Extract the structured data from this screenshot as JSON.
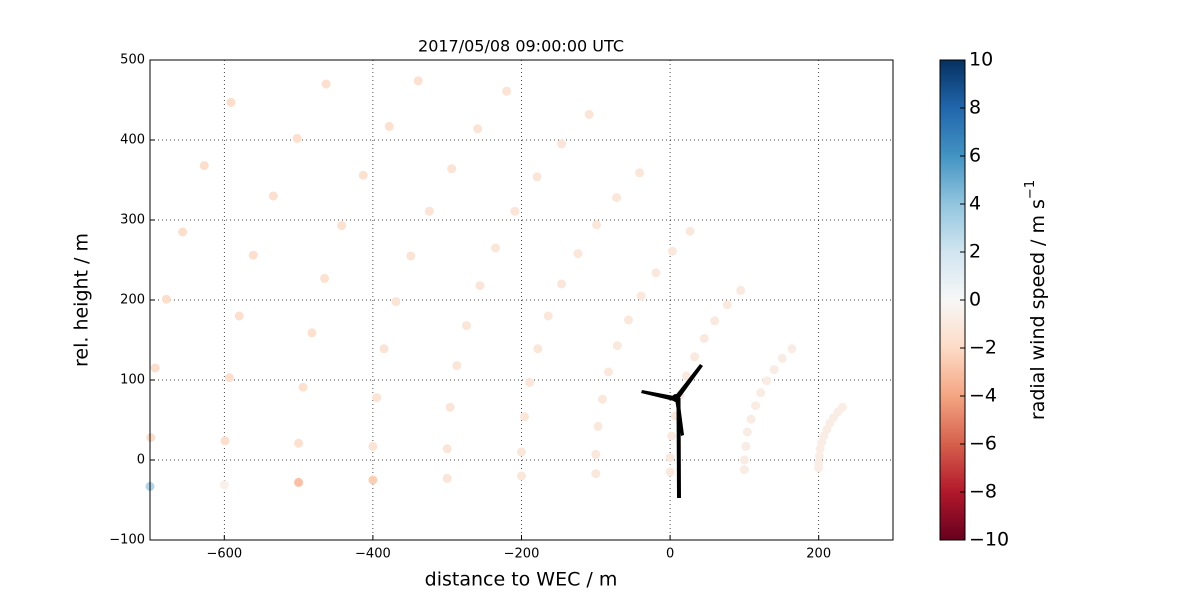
{
  "chart_data": {
    "type": "scatter",
    "title": "2017/05/08 09:00:00 UTC",
    "xlabel": "distance to WEC / m",
    "ylabel": "rel. height / m",
    "x": [
      200,
      200,
      201,
      202,
      204,
      207,
      211,
      215,
      220,
      226,
      232,
      100,
      100,
      102,
      104,
      109,
      115,
      122,
      130,
      140,
      151,
      164,
      0,
      0,
      2,
      7,
      13,
      22,
      33,
      46,
      60,
      77,
      95,
      -100,
      -100,
      -97,
      -91,
      -83,
      -71,
      -56,
      -39,
      -19,
      3,
      27,
      -200,
      -200,
      -196,
      -189,
      -178,
      -164,
      -146,
      -124,
      -99,
      -72,
      -41,
      -300,
      -300,
      -296,
      -287,
      -274,
      -256,
      -235,
      -209,
      -179,
      -146,
      -109,
      -400,
      -400,
      -395,
      -385,
      -369,
      -349,
      -324,
      -294,
      -259,
      -220,
      -500,
      -500,
      -494,
      -482,
      -465,
      -442,
      -413,
      -378,
      -339,
      -600,
      -599,
      -593,
      -580,
      -561,
      -534,
      -502,
      -463,
      -700,
      -699,
      -693,
      -678,
      -656,
      -627,
      -591
    ],
    "y": [
      -10,
      -4,
      5,
      14,
      22,
      30,
      38,
      46,
      53,
      60,
      66,
      -12,
      0,
      17,
      35,
      51,
      68,
      84,
      99,
      113,
      127,
      139,
      -15,
      3,
      30,
      55,
      81,
      105,
      129,
      152,
      174,
      194,
      212,
      -17,
      7,
      42,
      76,
      110,
      143,
      175,
      205,
      234,
      261,
      286,
      -20,
      10,
      54,
      97,
      139,
      180,
      220,
      258,
      294,
      328,
      359,
      -23,
      14,
      66,
      118,
      168,
      218,
      265,
      311,
      354,
      395,
      432,
      -25,
      17,
      78,
      139,
      198,
      255,
      311,
      364,
      414,
      461,
      -28,
      21,
      91,
      159,
      227,
      293,
      356,
      417,
      474,
      -31,
      24,
      103,
      180,
      256,
      330,
      402,
      470,
      -33,
      28,
      115,
      201,
      285,
      368,
      447
    ],
    "values": [
      -0.7,
      -0.7,
      -0.7,
      -0.7,
      -0.7,
      -0.7,
      -0.7,
      -0.7,
      -0.7,
      -0.7,
      -0.7,
      -0.8,
      -0.8,
      -0.8,
      -0.8,
      -0.8,
      -0.8,
      -0.8,
      -0.8,
      -0.8,
      -0.8,
      -0.8,
      -1.0,
      -1.0,
      -1.0,
      -1.0,
      -1.0,
      -1.0,
      -1.0,
      -1.0,
      -1.0,
      -1.0,
      -1.0,
      -1.1,
      -1.1,
      -1.1,
      -1.1,
      -1.1,
      -1.1,
      -1.1,
      -1.1,
      -1.1,
      -1.1,
      -1.1,
      -1.2,
      -1.2,
      -1.2,
      -1.2,
      -1.2,
      -1.2,
      -1.2,
      -1.2,
      -1.2,
      -1.2,
      -1.2,
      -1.3,
      -1.3,
      -1.3,
      -1.3,
      -1.3,
      -1.3,
      -1.3,
      -1.3,
      -1.3,
      -1.3,
      -1.3,
      -2.5,
      -1.4,
      -1.4,
      -1.4,
      -1.4,
      -1.4,
      -1.4,
      -1.4,
      -1.4,
      -1.4,
      -3,
      -1.6,
      -1.6,
      -1.6,
      -1.6,
      -1.6,
      -1.6,
      -1.6,
      -1.6,
      -0.5,
      -1.7,
      -1.7,
      -1.7,
      -1.7,
      -1.7,
      -1.7,
      -1.7,
      3,
      -1.8,
      -1.8,
      -1.8,
      -1.8,
      -1.8,
      -1.8
    ],
    "xlim": [
      -700,
      300
    ],
    "ylim": [
      -100,
      500
    ],
    "xticks": [
      {
        "value": -600,
        "label": "−600"
      },
      {
        "value": -400,
        "label": "−400"
      },
      {
        "value": -200,
        "label": "−200"
      },
      0,
      200
    ],
    "yticks": [
      {
        "value": -100,
        "label": "−100"
      },
      0,
      100,
      200,
      300,
      400,
      500
    ],
    "grid": true,
    "colorbar": {
      "label": "radial wind speed / m s",
      "label_sup": "−1",
      "lim": [
        -10,
        10
      ],
      "ticks": [
        {
          "value": -10,
          "label": "−10"
        },
        {
          "value": -8,
          "label": "−8"
        },
        {
          "value": -6,
          "label": "−6"
        },
        {
          "value": -4,
          "label": "−4"
        },
        {
          "value": -2,
          "label": "−2"
        },
        0,
        2,
        4,
        6,
        8,
        10
      ],
      "colormap": [
        "#67001f",
        "#b2182b",
        "#d6604d",
        "#f4a582",
        "#fddbc7",
        "#f7f7f7",
        "#d1e5f0",
        "#92c5de",
        "#4393c3",
        "#2166ac",
        "#053061"
      ]
    }
  }
}
